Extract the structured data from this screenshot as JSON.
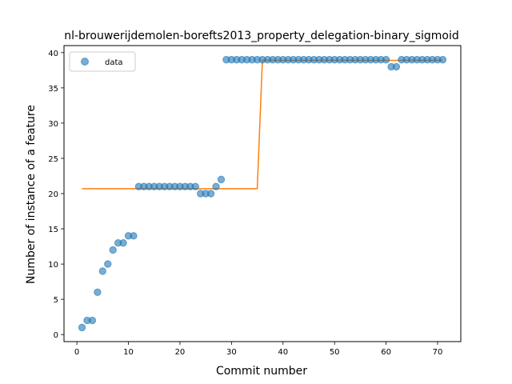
{
  "chart_data": {
    "type": "scatter",
    "title": "nl-brouwerijdemolen-borefts2013_property_delegation-binary_sigmoid",
    "xlabel": "Commit number",
    "ylabel": "Number of instance of a feature",
    "xlim": [
      -2.5,
      74.5
    ],
    "ylim": [
      -1,
      41
    ],
    "xticks": [
      0,
      10,
      20,
      30,
      40,
      50,
      60,
      70
    ],
    "yticks": [
      0,
      5,
      10,
      15,
      20,
      25,
      30,
      35,
      40
    ],
    "grid": false,
    "legend_position": "top-left",
    "series": [
      {
        "name": "data",
        "kind": "scatter",
        "color": "#1f77b4",
        "x": [
          1,
          2,
          3,
          4,
          5,
          6,
          7,
          8,
          9,
          10,
          11,
          12,
          13,
          14,
          15,
          16,
          17,
          18,
          19,
          20,
          21,
          22,
          23,
          24,
          25,
          26,
          27,
          28,
          29,
          30,
          31,
          32,
          33,
          34,
          35,
          36,
          37,
          38,
          39,
          40,
          41,
          42,
          43,
          44,
          45,
          46,
          47,
          48,
          49,
          50,
          51,
          52,
          53,
          54,
          55,
          56,
          57,
          58,
          59,
          60,
          61,
          62,
          63,
          64,
          65,
          66,
          67,
          68,
          69,
          70,
          71
        ],
        "y": [
          1,
          2,
          2,
          6,
          9,
          10,
          12,
          13,
          13,
          14,
          14,
          21,
          21,
          21,
          21,
          21,
          21,
          21,
          21,
          21,
          21,
          21,
          21,
          20,
          20,
          20,
          21,
          22,
          39,
          39,
          39,
          39,
          39,
          39,
          39,
          39,
          39,
          39,
          39,
          39,
          39,
          39,
          39,
          39,
          39,
          39,
          39,
          39,
          39,
          39,
          39,
          39,
          39,
          39,
          39,
          39,
          39,
          39,
          39,
          39,
          38,
          38,
          39,
          39,
          39,
          39,
          39,
          39,
          39,
          39,
          39
        ]
      },
      {
        "kind": "line",
        "color": "#ff7f0e",
        "x": [
          1,
          35,
          36,
          71
        ],
        "y": [
          20.7,
          20.7,
          38.9,
          38.9
        ]
      }
    ]
  }
}
